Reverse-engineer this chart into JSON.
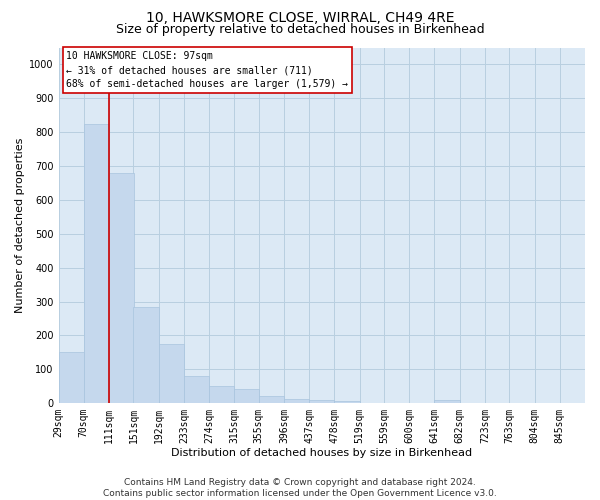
{
  "title": "10, HAWKSMORE CLOSE, WIRRAL, CH49 4RE",
  "subtitle": "Size of property relative to detached houses in Birkenhead",
  "xlabel": "Distribution of detached houses by size in Birkenhead",
  "ylabel": "Number of detached properties",
  "footer_line1": "Contains HM Land Registry data © Crown copyright and database right 2024.",
  "footer_line2": "Contains public sector information licensed under the Open Government Licence v3.0.",
  "bar_color": "#c5d8ed",
  "bar_edge_color": "#a8c4de",
  "ref_line_color": "#cc0000",
  "annotation_title": "10 HAWKSMORE CLOSE: 97sqm",
  "annotation_line1": "← 31% of detached houses are smaller (711)",
  "annotation_line2": "68% of semi-detached houses are larger (1,579) →",
  "categories": [
    "29sqm",
    "70sqm",
    "111sqm",
    "151sqm",
    "192sqm",
    "233sqm",
    "274sqm",
    "315sqm",
    "355sqm",
    "396sqm",
    "437sqm",
    "478sqm",
    "519sqm",
    "559sqm",
    "600sqm",
    "641sqm",
    "682sqm",
    "723sqm",
    "763sqm",
    "804sqm",
    "845sqm"
  ],
  "bin_edges": [
    29,
    70,
    111,
    151,
    192,
    233,
    274,
    315,
    355,
    396,
    437,
    478,
    519,
    559,
    600,
    641,
    682,
    723,
    763,
    804,
    845
  ],
  "bin_width": 41,
  "values": [
    150,
    825,
    680,
    285,
    175,
    80,
    52,
    42,
    22,
    12,
    9,
    7,
    0,
    0,
    0,
    10,
    0,
    0,
    0,
    0,
    0
  ],
  "ylim": [
    0,
    1050
  ],
  "yticks": [
    0,
    100,
    200,
    300,
    400,
    500,
    600,
    700,
    800,
    900,
    1000
  ],
  "ref_line_x": 111,
  "plot_bg_color": "#dce9f5",
  "fig_bg_color": "#ffffff",
  "grid_color": "#b8cfe0",
  "title_fontsize": 10,
  "subtitle_fontsize": 9,
  "axis_label_fontsize": 8,
  "tick_fontsize": 7,
  "annotation_fontsize": 7,
  "footer_fontsize": 6.5
}
